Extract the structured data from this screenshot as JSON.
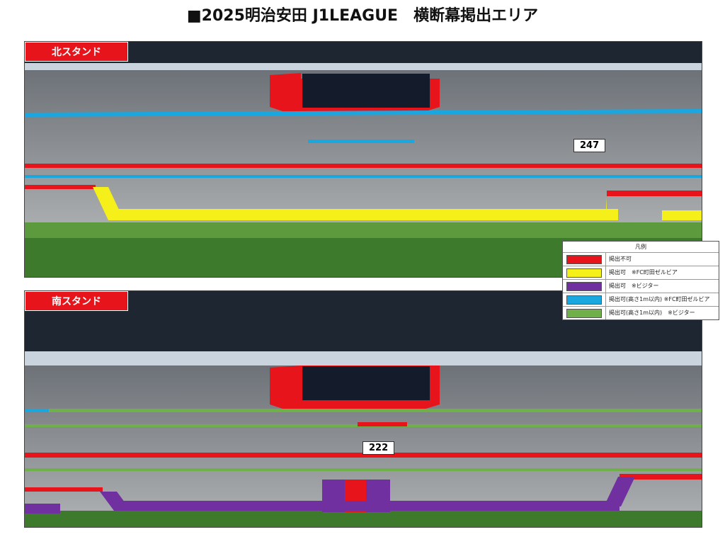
{
  "title": "■2025明治安田 J1LEAGUE　横断幕掲出エリア",
  "north": {
    "label": "北スタンド",
    "count": "247"
  },
  "south": {
    "label": "南スタンド",
    "count": "222"
  },
  "legend": {
    "title": "凡例",
    "items": [
      {
        "label": "掲出不可",
        "color": "#e8141b"
      },
      {
        "label": "掲出可　※FC町田ゼルビア",
        "color": "#f5ef1a"
      },
      {
        "label": "掲出可　※ビジター",
        "color": "#7030a0"
      },
      {
        "label": "掲出可(高さ1m以内) ※FC町田ゼルビア",
        "color": "#1aa7e0"
      },
      {
        "label": "掲出可(高さ1m以内)　※ビジター",
        "color": "#6fb04a"
      }
    ]
  }
}
